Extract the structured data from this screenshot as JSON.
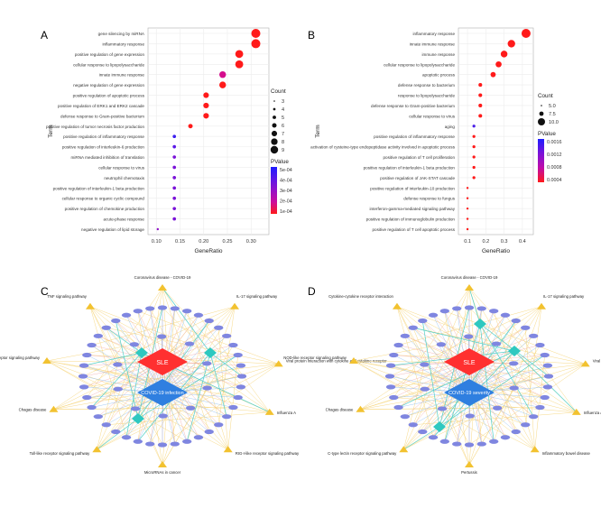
{
  "panels": {
    "a": "A",
    "b": "B",
    "c": "C",
    "d": "D"
  },
  "chart_data": [
    {
      "type": "scatter",
      "panel": "A",
      "xlabel": "GeneRatio",
      "ylabel": "Term",
      "xlim": [
        0.09,
        0.33
      ],
      "xticks": [
        0.1,
        0.15,
        0.2,
        0.25,
        0.3
      ],
      "xtick_labels": [
        "0.10",
        "0.15",
        "0.20",
        "0.25",
        "0.30"
      ],
      "size_legend": {
        "title": "Count",
        "labels": [
          "3",
          "4",
          "5",
          "6",
          "7",
          "8",
          "9"
        ],
        "values": [
          3,
          4,
          5,
          6,
          7,
          8,
          9
        ]
      },
      "color_legend": {
        "title": "PValue",
        "labels": [
          "5e-04",
          "4e-04",
          "3e-04",
          "2e-04",
          "1e-04"
        ],
        "colors": [
          "#1d1dff",
          "#5a18e8",
          "#9412c8",
          "#cc0c9c",
          "#ff1a1a"
        ]
      },
      "terms": [
        "gene silencing by miRNA",
        "inflammatory response",
        "positive regulation of gene expression",
        "cellular response to lipopolysaccharide",
        "innate immune response",
        "negative regulation of gene expression",
        "positive regulation of apoptotic process",
        "positive regulation of ERK1 and ERK2 cascade",
        "defense response to Gram-positive bacterium",
        "positive regulation of tumor necrosis factor production",
        "positive regulation of inflammatory response",
        "positive regulation of interleukin-6 production",
        "miRNA mediated inhibition of translation",
        "cellular response to virus",
        "neutrophil chemotaxis",
        "positive regulation of interleukin-1 beta production",
        "cellular response to organic cyclic compound",
        "positive regulation of chemokine production",
        "acute-phase response",
        "negative regulation of lipid storage"
      ],
      "gene_ratio": [
        0.31,
        0.31,
        0.275,
        0.275,
        0.24,
        0.24,
        0.205,
        0.205,
        0.205,
        0.172,
        0.138,
        0.138,
        0.138,
        0.138,
        0.138,
        0.138,
        0.138,
        0.138,
        0.138,
        0.103
      ],
      "count": [
        9,
        9,
        8,
        8,
        7,
        7,
        6,
        6,
        6,
        5,
        4,
        4,
        4,
        4,
        4,
        4,
        4,
        4,
        4,
        3
      ],
      "colors": [
        "#ff1a1a",
        "#ff1a1a",
        "#ff1a1a",
        "#ff1a1a",
        "#d40c8c",
        "#ff1a1a",
        "#ff1a1a",
        "#ff1a1a",
        "#ff1a1a",
        "#ff1a1a",
        "#3d1ff0",
        "#5a18e8",
        "#7a12d8",
        "#7a12d8",
        "#7a12d8",
        "#7a12d8",
        "#7a12d8",
        "#7a12d8",
        "#7a12d8",
        "#8f10c8"
      ]
    },
    {
      "type": "scatter",
      "panel": "B",
      "xlabel": "GeneRatio",
      "ylabel": "Term",
      "xlim": [
        0.07,
        0.44
      ],
      "xticks": [
        0.1,
        0.2,
        0.3,
        0.4
      ],
      "xtick_labels": [
        "0.1",
        "0.2",
        "0.3",
        "0.4"
      ],
      "size_legend": {
        "title": "Count",
        "labels": [
          "5.0",
          "7.5",
          "10.0"
        ],
        "values": [
          5,
          7.5,
          10
        ]
      },
      "color_legend": {
        "title": "PValue",
        "labels": [
          "0.0016",
          "0.0012",
          "0.0008",
          "0.0004"
        ],
        "colors": [
          "#1d1dff",
          "#7a12d8",
          "#c00ca8",
          "#ff1a1a"
        ]
      },
      "terms": [
        "inflammatory response",
        "innate immune response",
        "immune response",
        "cellular response to lipopolysaccharide",
        "apoptotic process",
        "defense response to bacterium",
        "response to lipopolysaccharide",
        "defense response to Gram-positive bacterium",
        "cellular response to virus",
        "aging",
        "positive regulation of inflammatory response",
        "activation of cysteine-type endopeptidase activity involved in apoptotic process",
        "positive regulation of T cell proliferation",
        "positive regulation of interleukin-1 beta production",
        "positive regulation of JAK-STAT cascade",
        "positive regulation of interleukin-10 production",
        "defense response to fungus",
        "interferon-gamma-mediated signaling pathway",
        "positive regulation of immunoglobulin production",
        "positive regulation of T cell apoptotic process"
      ],
      "gene_ratio": [
        0.42,
        0.34,
        0.3,
        0.27,
        0.24,
        0.17,
        0.17,
        0.17,
        0.17,
        0.135,
        0.135,
        0.135,
        0.135,
        0.135,
        0.135,
        0.1,
        0.1,
        0.1,
        0.1,
        0.1
      ],
      "count": [
        12,
        10,
        9,
        8,
        7,
        5,
        5,
        5,
        5,
        4,
        4,
        4,
        4,
        4,
        4,
        3,
        3,
        3,
        3,
        3
      ],
      "colors": [
        "#ff1a1a",
        "#ff1a1a",
        "#ff1a1a",
        "#ff1a1a",
        "#ff1a1a",
        "#ff1a1a",
        "#ff1a1a",
        "#ff1a1a",
        "#ff1a1a",
        "#4b20e8",
        "#ff1a1a",
        "#ff1a1a",
        "#ff1a1a",
        "#ff1a1a",
        "#ff1a1a",
        "#ff1a1a",
        "#ff1a1a",
        "#ff1a1a",
        "#ff1a1a",
        "#ff1a1a"
      ]
    }
  ],
  "networks": [
    {
      "panel": "C",
      "disease1": "SLE",
      "disease2": "COVID-19 infection",
      "pathways": [
        "Coronavirus disease - COVID-19",
        "IL-17 signaling pathway",
        "Viral protein interaction with cytokine and cytokine receptor",
        "Influenza A",
        "RIG-I-like receptor signaling pathway",
        "MicroRNAs in cancer",
        "Toll-like receptor signaling pathway",
        "Chagas disease",
        "NOD-like receptor signaling pathway",
        "TNF signaling pathway"
      ],
      "tfs": [
        "",
        "",
        ""
      ]
    },
    {
      "panel": "D",
      "disease1": "SLE",
      "disease2": "COVID-19 severity",
      "pathways": [
        "Coronavirus disease - COVID-19",
        "IL-17 signaling pathway",
        "Viral protein interaction with cytokine and cytokine receptor",
        "Influenza A",
        "Inflammatory bowel disease",
        "Pertussis",
        "C-type lectin receptor signaling pathway",
        "Chagas disease",
        "NOD-like receptor signaling pathway",
        "Cytokine-cytokine receptor interaction"
      ],
      "tfs": [
        "",
        "",
        ""
      ]
    }
  ],
  "colors": {
    "red": "#ff3030",
    "blue": "#2f7fe0",
    "teal": "#2ec8c0",
    "gene": "#7f86e0",
    "yellow": "#f2c230",
    "edge_yellow": "#f6d57a",
    "edge_red": "#f2a8a8",
    "edge_blue": "#7fb6f0",
    "edge_teal": "#52d0c8"
  }
}
